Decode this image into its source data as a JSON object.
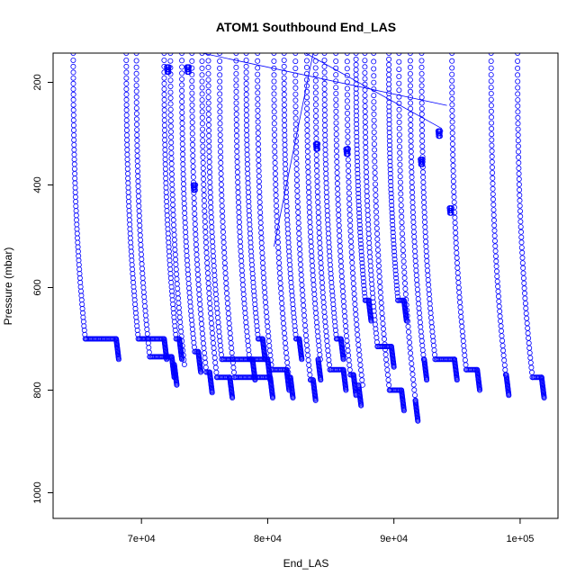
{
  "chart_data": {
    "type": "scatter",
    "title": "ATOM1 Southbound End_LAS",
    "xlabel": "End_LAS",
    "ylabel": "Pressure (mbar)",
    "xlim": [
      63000,
      103000
    ],
    "ylim": [
      1050,
      143
    ],
    "y_reversed": true,
    "grid": false,
    "marker": "open-circle",
    "color": "#0000ff",
    "x_ticks": [
      70000,
      80000,
      90000,
      100000
    ],
    "x_tick_labels": [
      "7e+04",
      "8e+04",
      "9e+04",
      "1e+05"
    ],
    "y_ticks": [
      200,
      400,
      600,
      800,
      1000
    ],
    "y_tick_labels": [
      "200",
      "400",
      "600",
      "800",
      "1000"
    ],
    "profiles": [
      {
        "start": 64600,
        "plateau": 700,
        "flat_end": 68000
      },
      {
        "start": 68800,
        "plateau": 700,
        "flat_end": 71800
      },
      {
        "start": 69600,
        "plateau": 735,
        "flat_end": 72400
      },
      {
        "start": 71800,
        "plateau": 700,
        "flat_end": 73000
      },
      {
        "start": 72300,
        "plateau": 750,
        "flat_end": 72600
      },
      {
        "start": 73200,
        "plateau": 725,
        "flat_end": 74500
      },
      {
        "start": 74000,
        "plateau": 765,
        "flat_end": 75400
      },
      {
        "start": 74800,
        "plateau": 775,
        "flat_end": 77000
      },
      {
        "start": 75300,
        "plateau": 740,
        "flat_end": 78800
      },
      {
        "start": 76200,
        "plateau": 775,
        "flat_end": 80200
      },
      {
        "start": 77500,
        "plateau": 740,
        "flat_end": 80000
      },
      {
        "start": 78300,
        "plateau": 700,
        "flat_end": 79600
      },
      {
        "start": 79200,
        "plateau": 760,
        "flat_end": 81500
      },
      {
        "start": 80500,
        "plateau": 775,
        "flat_end": 81800
      },
      {
        "start": 81300,
        "plateau": 700,
        "flat_end": 82500
      },
      {
        "start": 82200,
        "plateau": 780,
        "flat_end": 83600
      },
      {
        "start": 83100,
        "plateau": 740,
        "flat_end": 84000
      },
      {
        "start": 83800,
        "plateau": 760,
        "flat_end": 86000
      },
      {
        "start": 84500,
        "plateau": 700,
        "flat_end": 85800
      },
      {
        "start": 85400,
        "plateau": 770,
        "flat_end": 86800
      },
      {
        "start": 86300,
        "plateau": 790,
        "flat_end": 87200
      },
      {
        "start": 87000,
        "plateau": 625,
        "flat_end": 88000
      },
      {
        "start": 87700,
        "plateau": 715,
        "flat_end": 89800
      },
      {
        "start": 88400,
        "plateau": 800,
        "flat_end": 90600
      },
      {
        "start": 89600,
        "plateau": 625,
        "flat_end": 90800
      },
      {
        "start": 90400,
        "plateau": 820,
        "flat_end": 91700
      },
      {
        "start": 91300,
        "plateau": 740,
        "flat_end": 92400
      },
      {
        "start": 92200,
        "plateau": 740,
        "flat_end": 94800
      },
      {
        "start": 94600,
        "plateau": 760,
        "flat_end": 96600
      },
      {
        "start": 97700,
        "plateau": 770,
        "flat_end": 98900
      },
      {
        "start": 99800,
        "plateau": 775,
        "flat_end": 101700
      }
    ],
    "clusters": [
      {
        "x": 72100,
        "y": 175
      },
      {
        "x": 73700,
        "y": 175
      },
      {
        "x": 74200,
        "y": 405
      },
      {
        "x": 83900,
        "y": 325
      },
      {
        "x": 86300,
        "y": 335
      },
      {
        "x": 92200,
        "y": 355
      },
      {
        "x": 94500,
        "y": 450
      },
      {
        "x": 93600,
        "y": 300
      }
    ],
    "connecting_lines": [
      [
        [
          74800,
          143
        ],
        [
          94200,
          245
        ]
      ],
      [
        [
          83000,
          143
        ],
        [
          93800,
          290
        ]
      ],
      [
        [
          80500,
          520
        ],
        [
          83600,
          143
        ]
      ]
    ]
  }
}
